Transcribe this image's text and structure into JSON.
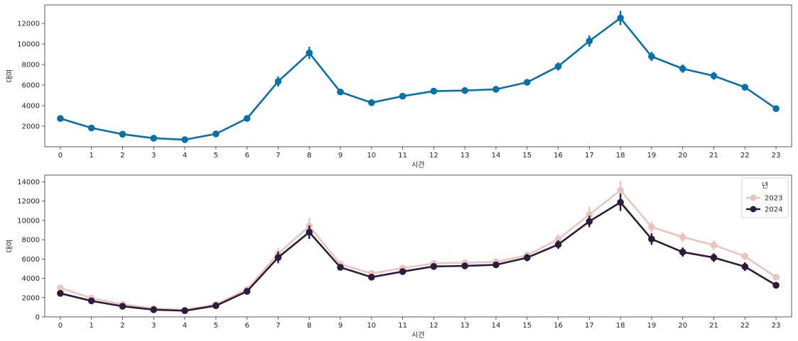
{
  "chart_data": [
    {
      "type": "line",
      "xlabel": "시간",
      "ylabel": "대여",
      "categories": [
        "0",
        "1",
        "2",
        "3",
        "4",
        "5",
        "6",
        "7",
        "8",
        "9",
        "10",
        "11",
        "12",
        "13",
        "14",
        "15",
        "16",
        "17",
        "18",
        "19",
        "20",
        "21",
        "22",
        "23"
      ],
      "yticks": [
        2000,
        4000,
        6000,
        8000,
        10000,
        12000
      ],
      "ylim": [
        0,
        13800
      ],
      "grid": false,
      "series": [
        {
          "color": "#0571a8",
          "values": [
            2750,
            1830,
            1220,
            830,
            690,
            1250,
            2760,
            6350,
            9130,
            5330,
            4290,
            4920,
            5410,
            5470,
            5590,
            6270,
            7820,
            10290,
            12530,
            8790,
            7600,
            6900,
            5790,
            3710
          ],
          "errors": [
            120,
            90,
            70,
            50,
            40,
            80,
            130,
            500,
            600,
            230,
            200,
            210,
            230,
            230,
            250,
            300,
            400,
            550,
            700,
            450,
            400,
            380,
            300,
            150
          ]
        }
      ]
    },
    {
      "type": "line",
      "xlabel": "시간",
      "ylabel": "대여",
      "categories": [
        "0",
        "1",
        "2",
        "3",
        "4",
        "5",
        "6",
        "7",
        "8",
        "9",
        "10",
        "11",
        "12",
        "13",
        "14",
        "15",
        "16",
        "17",
        "18",
        "19",
        "20",
        "21",
        "22",
        "23"
      ],
      "yticks": [
        0,
        2000,
        4000,
        6000,
        8000,
        10000,
        12000,
        14000
      ],
      "ylim": [
        0,
        14700
      ],
      "grid": false,
      "legend": {
        "title": "년",
        "placement": "top-right"
      },
      "series": [
        {
          "name": "2023",
          "color": "#ebc5bd",
          "values": [
            3000,
            1950,
            1300,
            880,
            720,
            1300,
            2850,
            6550,
            9420,
            5460,
            4500,
            5060,
            5540,
            5610,
            5700,
            6380,
            8050,
            10600,
            13130,
            9320,
            8280,
            7440,
            6280,
            4110
          ],
          "errors": [
            150,
            110,
            90,
            60,
            50,
            100,
            160,
            600,
            850,
            320,
            300,
            300,
            320,
            330,
            340,
            380,
            500,
            800,
            950,
            550,
            500,
            480,
            380,
            200
          ]
        },
        {
          "name": "2024",
          "color": "#2c1b3d",
          "values": [
            2440,
            1660,
            1100,
            750,
            640,
            1160,
            2650,
            6160,
            8780,
            5140,
            4120,
            4700,
            5230,
            5290,
            5400,
            6140,
            7500,
            9900,
            11880,
            8070,
            6720,
            6150,
            5210,
            3280
          ],
          "errors": [
            120,
            90,
            70,
            50,
            40,
            80,
            130,
            600,
            700,
            300,
            250,
            260,
            280,
            300,
            300,
            380,
            450,
            600,
            900,
            600,
            480,
            450,
            450,
            150
          ]
        }
      ]
    }
  ]
}
